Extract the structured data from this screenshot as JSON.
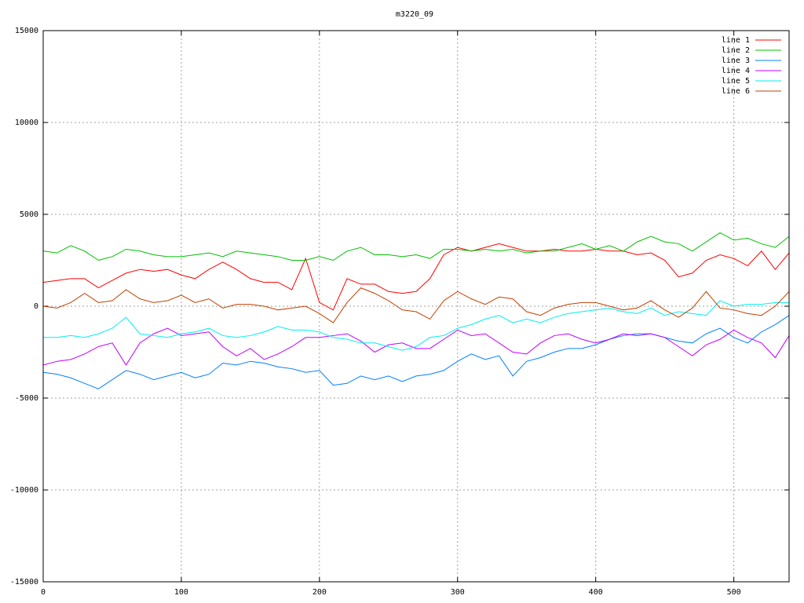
{
  "chart_data": {
    "type": "line",
    "title": "m3220_09",
    "x": [
      0,
      10,
      20,
      30,
      40,
      50,
      60,
      70,
      80,
      90,
      100,
      110,
      120,
      130,
      140,
      150,
      160,
      170,
      180,
      190,
      200,
      210,
      220,
      230,
      240,
      250,
      260,
      270,
      280,
      290,
      300,
      310,
      320,
      330,
      340,
      350,
      360,
      370,
      380,
      390,
      400,
      410,
      420,
      430,
      440,
      450,
      460,
      470,
      480,
      490,
      500,
      510,
      520,
      530,
      540
    ],
    "xlim": [
      0,
      540
    ],
    "xticks": [
      0,
      100,
      200,
      300,
      400,
      500
    ],
    "ylim": [
      -15000,
      15000
    ],
    "yticks": [
      -15000,
      -10000,
      -5000,
      0,
      5000,
      10000,
      15000
    ],
    "grid": true,
    "legend": "top-right",
    "series": [
      {
        "name": "line 1",
        "color": "#ff0000",
        "values": [
          1300,
          1400,
          1500,
          1500,
          1000,
          1400,
          1800,
          2000,
          1900,
          2000,
          1700,
          1500,
          2000,
          2400,
          2000,
          1500,
          1300,
          1300,
          900,
          2600,
          200,
          -200,
          1500,
          1200,
          1200,
          800,
          700,
          800,
          1500,
          2800,
          3200,
          3000,
          3200,
          3400,
          3200,
          3000,
          3000,
          3100,
          3000,
          3000,
          3100,
          3000,
          3000,
          2800,
          2900,
          2500,
          1600,
          1800,
          2500,
          2800,
          2600,
          2200,
          3000,
          2000,
          2900
        ]
      },
      {
        "name": "line 2",
        "color": "#00c000",
        "values": [
          3000,
          2900,
          3300,
          3000,
          2500,
          2700,
          3100,
          3000,
          2800,
          2700,
          2700,
          2800,
          2900,
          2700,
          3000,
          2900,
          2800,
          2700,
          2500,
          2500,
          2700,
          2500,
          3000,
          3200,
          2800,
          2800,
          2700,
          2800,
          2600,
          3100,
          3100,
          3000,
          3100,
          3000,
          3100,
          2900,
          3000,
          3000,
          3200,
          3400,
          3100,
          3300,
          3000,
          3500,
          3800,
          3500,
          3400,
          3000,
          3500,
          4000,
          3600,
          3700,
          3400,
          3200,
          3800
        ]
      },
      {
        "name": "line 3",
        "color": "#0080ff",
        "values": [
          -3600,
          -3700,
          -3900,
          -4200,
          -4500,
          -4000,
          -3500,
          -3700,
          -4000,
          -3800,
          -3600,
          -3900,
          -3700,
          -3100,
          -3200,
          -3000,
          -3100,
          -3300,
          -3400,
          -3600,
          -3500,
          -4300,
          -4200,
          -3800,
          -4000,
          -3800,
          -4100,
          -3800,
          -3700,
          -3500,
          -3000,
          -2600,
          -2900,
          -2700,
          -3800,
          -3000,
          -2800,
          -2500,
          -2300,
          -2300,
          -2100,
          -1800,
          -1600,
          -1500,
          -1500,
          -1700,
          -1900,
          -2000,
          -1500,
          -1200,
          -1700,
          -2000,
          -1400,
          -1000,
          -500
        ]
      },
      {
        "name": "line 4",
        "color": "#c000ff",
        "values": [
          -3200,
          -3000,
          -2900,
          -2600,
          -2200,
          -2000,
          -3200,
          -2000,
          -1500,
          -1200,
          -1600,
          -1500,
          -1400,
          -2200,
          -2700,
          -2300,
          -2900,
          -2600,
          -2200,
          -1700,
          -1700,
          -1600,
          -1500,
          -1900,
          -2500,
          -2100,
          -2000,
          -2300,
          -2300,
          -1800,
          -1300,
          -1600,
          -1500,
          -2000,
          -2500,
          -2600,
          -2000,
          -1600,
          -1500,
          -1800,
          -2000,
          -1800,
          -1500,
          -1600,
          -1500,
          -1700,
          -2200,
          -2700,
          -2100,
          -1800,
          -1300,
          -1700,
          -2000,
          -2800,
          -1600
        ]
      },
      {
        "name": "line 5",
        "color": "#00eeee",
        "values": [
          -1700,
          -1700,
          -1600,
          -1700,
          -1500,
          -1200,
          -600,
          -1500,
          -1600,
          -1700,
          -1500,
          -1400,
          -1200,
          -1600,
          -1700,
          -1600,
          -1400,
          -1100,
          -1300,
          -1300,
          -1400,
          -1700,
          -1800,
          -2000,
          -2000,
          -2200,
          -2400,
          -2200,
          -1700,
          -1600,
          -1200,
          -1000,
          -700,
          -500,
          -900,
          -700,
          -900,
          -600,
          -400,
          -300,
          -200,
          -100,
          -300,
          -400,
          -100,
          -500,
          -300,
          -400,
          -500,
          300,
          0,
          100,
          100,
          200,
          200
        ]
      },
      {
        "name": "line 6",
        "color": "#c04000",
        "values": [
          0,
          -100,
          200,
          700,
          200,
          300,
          900,
          400,
          200,
          300,
          600,
          200,
          400,
          -100,
          100,
          100,
          0,
          -200,
          -100,
          0,
          -400,
          -900,
          200,
          1000,
          700,
          300,
          -200,
          -300,
          -700,
          300,
          800,
          400,
          100,
          500,
          400,
          -300,
          -500,
          -100,
          100,
          200,
          200,
          0,
          -200,
          -100,
          300,
          -200,
          -600,
          -100,
          800,
          -100,
          -200,
          -400,
          -500,
          0,
          800
        ]
      }
    ]
  }
}
